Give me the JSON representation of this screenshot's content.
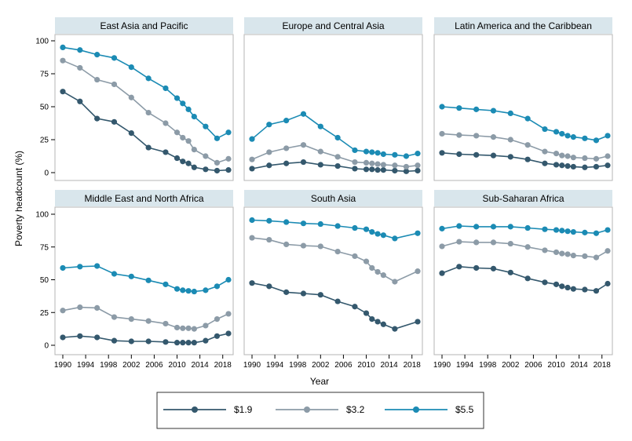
{
  "chart_data": {
    "type": "line",
    "ylabel": "Poverty headcount (%)",
    "xlabel": "Year",
    "ylim": [
      0,
      100
    ],
    "xlim": [
      1990,
      2019
    ],
    "yticks": [
      0,
      25,
      50,
      75,
      100
    ],
    "xticks": [
      1990,
      1994,
      1998,
      2002,
      2006,
      2010,
      2014,
      2018
    ],
    "grid": false,
    "legend": "bottom",
    "series_colors": {
      "$1.9": "#34586d",
      "$3.2": "#8c9ba7",
      "$5.5": "#1b8bb4"
    },
    "series_names": [
      "$1.9",
      "$3.2",
      "$5.5"
    ],
    "panels": [
      {
        "title": "East Asia and Pacific",
        "series": [
          {
            "name": "$1.9",
            "x": [
              1990,
              1993,
              1996,
              1999,
              2002,
              2005,
              2008,
              2010,
              2011,
              2012,
              2013,
              2015,
              2017,
              2019
            ],
            "y": [
              61.5,
              54,
              41,
              38.5,
              30,
              19,
              15.5,
              11,
              8.5,
              7,
              4,
              2.5,
              1.5,
              2
            ]
          },
          {
            "name": "$3.2",
            "x": [
              1990,
              1993,
              1996,
              1999,
              2002,
              2005,
              2008,
              2010,
              2011,
              2012,
              2013,
              2015,
              2017,
              2019
            ],
            "y": [
              85,
              79.5,
              70.5,
              67,
              57,
              45.5,
              37.5,
              30.5,
              26.5,
              24,
              17.5,
              12.5,
              7.5,
              10.5
            ]
          },
          {
            "name": "$5.5",
            "x": [
              1990,
              1993,
              1996,
              1999,
              2002,
              2005,
              2008,
              2010,
              2011,
              2012,
              2013,
              2015,
              2017,
              2019
            ],
            "y": [
              95,
              93,
              89.5,
              87,
              80,
              71.5,
              64,
              56.5,
              52.5,
              48,
              42.5,
              35,
              26,
              30.5
            ]
          }
        ]
      },
      {
        "title": "Europe and Central Asia",
        "series": [
          {
            "name": "$1.9",
            "x": [
              1990,
              1993,
              1996,
              1999,
              2002,
              2005,
              2008,
              2010,
              2011,
              2012,
              2013,
              2015,
              2017,
              2019
            ],
            "y": [
              3,
              5.5,
              7,
              8,
              6,
              5,
              3,
              2.5,
              2.5,
              2,
              2,
              1.5,
              1,
              1.5
            ]
          },
          {
            "name": "$3.2",
            "x": [
              1990,
              1993,
              1996,
              1999,
              2002,
              2005,
              2008,
              2010,
              2011,
              2012,
              2013,
              2015,
              2017,
              2019
            ],
            "y": [
              10,
              15.5,
              18.5,
              21,
              16,
              12,
              8,
              7.5,
              7,
              6.5,
              6,
              5.5,
              4.5,
              5.5
            ]
          },
          {
            "name": "$5.5",
            "x": [
              1990,
              1993,
              1996,
              1999,
              2002,
              2005,
              2008,
              2010,
              2011,
              2012,
              2013,
              2015,
              2017,
              2019
            ],
            "y": [
              25.5,
              36.5,
              39.5,
              44.5,
              35,
              26.5,
              17,
              16,
              15.5,
              15,
              14,
              13.5,
              12.5,
              14.5
            ]
          }
        ]
      },
      {
        "title": "Latin America and the Caribbean",
        "series": [
          {
            "name": "$1.9",
            "x": [
              1990,
              1993,
              1996,
              1999,
              2002,
              2005,
              2008,
              2010,
              2011,
              2012,
              2013,
              2015,
              2017,
              2019
            ],
            "y": [
              15,
              14,
              13.5,
              13,
              12,
              10,
              7,
              6,
              5.5,
              5,
              4.5,
              4,
              4.5,
              5.5
            ]
          },
          {
            "name": "$3.2",
            "x": [
              1990,
              1993,
              1996,
              1999,
              2002,
              2005,
              2008,
              2010,
              2011,
              2012,
              2013,
              2015,
              2017,
              2019
            ],
            "y": [
              29.5,
              28.5,
              28,
              27,
              25,
              21,
              16,
              14.5,
              13,
              12.5,
              11.5,
              11,
              10.5,
              12.5
            ]
          },
          {
            "name": "$5.5",
            "x": [
              1990,
              1993,
              1996,
              1999,
              2002,
              2005,
              2008,
              2010,
              2011,
              2012,
              2013,
              2015,
              2017,
              2019
            ],
            "y": [
              50,
              49,
              48,
              47,
              45,
              41,
              33,
              31,
              29.5,
              28,
              27,
              26,
              24.5,
              28
            ]
          }
        ]
      },
      {
        "title": "Middle East and North Africa",
        "series": [
          {
            "name": "$1.9",
            "x": [
              1990,
              1993,
              1996,
              1999,
              2002,
              2005,
              2008,
              2010,
              2011,
              2012,
              2013,
              2015,
              2017,
              2019
            ],
            "y": [
              6,
              7,
              6,
              3.5,
              3,
              3,
              2.5,
              2,
              2,
              2,
              2,
              3.5,
              7,
              9
            ]
          },
          {
            "name": "$3.2",
            "x": [
              1990,
              1993,
              1996,
              1999,
              2002,
              2005,
              2008,
              2010,
              2011,
              2012,
              2013,
              2015,
              2017,
              2019
            ],
            "y": [
              26.5,
              29,
              28.5,
              21.5,
              20,
              18.5,
              16.5,
              13.5,
              13,
              13,
              12.5,
              15,
              20,
              24
            ]
          },
          {
            "name": "$5.5",
            "x": [
              1990,
              1993,
              1996,
              1999,
              2002,
              2005,
              2008,
              2010,
              2011,
              2012,
              2013,
              2015,
              2017,
              2019
            ],
            "y": [
              59,
              60,
              60.5,
              54.5,
              52.5,
              49.5,
              46.5,
              43,
              42,
              41.5,
              41,
              42,
              45,
              50
            ]
          }
        ]
      },
      {
        "title": "South Asia",
        "series": [
          {
            "name": "$1.9",
            "x": [
              1990,
              1993,
              1996,
              1999,
              2002,
              2005,
              2008,
              2010,
              2011,
              2012,
              2013,
              2015,
              2019
            ],
            "y": [
              47.5,
              45,
              40.5,
              39.5,
              38.5,
              33.5,
              29.5,
              24.5,
              20,
              18,
              16,
              12.5,
              18
            ]
          },
          {
            "name": "$3.2",
            "x": [
              1990,
              1993,
              1996,
              1999,
              2002,
              2005,
              2008,
              2010,
              2011,
              2012,
              2013,
              2015,
              2019
            ],
            "y": [
              82,
              80.5,
              77,
              76,
              75.5,
              71.5,
              68,
              64,
              59,
              56,
              53.5,
              48.5,
              56.5
            ]
          },
          {
            "name": "$5.5",
            "x": [
              1990,
              1993,
              1996,
              1999,
              2002,
              2005,
              2008,
              2010,
              2011,
              2012,
              2013,
              2015,
              2019
            ],
            "y": [
              95.5,
              95,
              94,
              93,
              92.5,
              91,
              89.5,
              88.5,
              86.5,
              85,
              84,
              81.5,
              85.5
            ]
          }
        ]
      },
      {
        "title": "Sub-Saharan Africa",
        "series": [
          {
            "name": "$1.9",
            "x": [
              1990,
              1993,
              1996,
              1999,
              2002,
              2005,
              2008,
              2010,
              2011,
              2012,
              2013,
              2015,
              2017,
              2019
            ],
            "y": [
              55,
              60,
              59,
              58.5,
              55.5,
              51,
              48,
              46.5,
              45,
              44,
              43,
              42.5,
              41.5,
              47
            ]
          },
          {
            "name": "$3.2",
            "x": [
              1990,
              1993,
              1996,
              1999,
              2002,
              2005,
              2008,
              2010,
              2011,
              2012,
              2013,
              2015,
              2017,
              2019
            ],
            "y": [
              75.5,
              79,
              78.5,
              78.5,
              77.5,
              75,
              72.5,
              71,
              70,
              69.5,
              68.5,
              68,
              67,
              72
            ]
          },
          {
            "name": "$5.5",
            "x": [
              1990,
              1993,
              1996,
              1999,
              2002,
              2005,
              2008,
              2010,
              2011,
              2012,
              2013,
              2015,
              2017,
              2019
            ],
            "y": [
              89,
              91,
              90.5,
              90.5,
              90.5,
              89.5,
              88.5,
              88,
              87.5,
              87,
              86.5,
              86,
              85.5,
              88
            ]
          }
        ]
      }
    ]
  }
}
